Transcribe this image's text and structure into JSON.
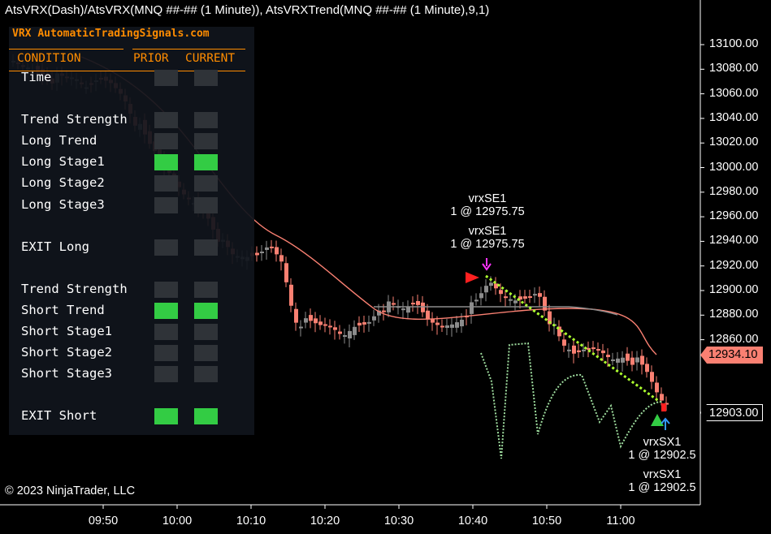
{
  "window": {
    "title": "AtsVRX(Dash)/AtsVRX(MNQ ##-## (1 Minute)), AtsVRXTrend(MNQ ##-## (1 Minute),9,1)",
    "copyright": "© 2023 NinjaTrader, LLC"
  },
  "panel": {
    "prefix": "VRX",
    "brand": "AutomaticTradingSignals.com",
    "headers": {
      "condition": "CONDITION",
      "prior": "PRIOR",
      "current": "CURRENT"
    },
    "rows": [
      {
        "label": "Time",
        "prior": false,
        "current": false
      },
      {
        "label": "Trend Strength",
        "prior": false,
        "current": false
      },
      {
        "label": "Long Trend",
        "prior": false,
        "current": false
      },
      {
        "label": "Long Stage1",
        "prior": true,
        "current": true
      },
      {
        "label": "Long Stage2",
        "prior": false,
        "current": false
      },
      {
        "label": "Long Stage3",
        "prior": false,
        "current": false
      },
      {
        "label": "EXIT Long",
        "prior": false,
        "current": false
      },
      {
        "label": "Trend Strength",
        "prior": false,
        "current": false
      },
      {
        "label": "Short Trend",
        "prior": true,
        "current": true
      },
      {
        "label": "Short Stage1",
        "prior": false,
        "current": false
      },
      {
        "label": "Short Stage2",
        "prior": false,
        "current": false
      },
      {
        "label": "Short Stage3",
        "prior": false,
        "current": false
      },
      {
        "label": "EXIT Short",
        "prior": true,
        "current": true
      }
    ]
  },
  "price_axis": [
    "13100.00",
    "13080.00",
    "13060.00",
    "13040.00",
    "13020.00",
    "13000.00",
    "12980.00",
    "12960.00",
    "12940.00",
    "12920.00",
    "12900.00",
    "12880.00",
    "12860.00"
  ],
  "time_axis": [
    "09:50",
    "10:00",
    "10:10",
    "10:20",
    "10:30",
    "10:40",
    "10:50",
    "11:00"
  ],
  "price_flags": {
    "ma_value": "12934.10",
    "last_price": "12903.00"
  },
  "trades": {
    "entry_1": {
      "name": "vrxSE1",
      "detail": "1 @ 12975.75"
    },
    "entry_2": {
      "name": "vrxSE1",
      "detail": "1 @ 12975.75"
    },
    "exit_1": {
      "name": "vrxSX1",
      "detail": "1 @ 12902.5"
    },
    "exit_2": {
      "name": "vrxSX1",
      "detail": "1 @ 12902.5"
    }
  },
  "colors": {
    "up_bar": "#8c8c8c",
    "down_bar": "#fa8072",
    "moving_average": "#fa8072",
    "flat_line": "#8c8c8c",
    "trade_line": "#adff2f",
    "oscillator": "#9edc9e",
    "panel_accent": "#ff8c00",
    "active_cell": "#33cc44"
  }
}
